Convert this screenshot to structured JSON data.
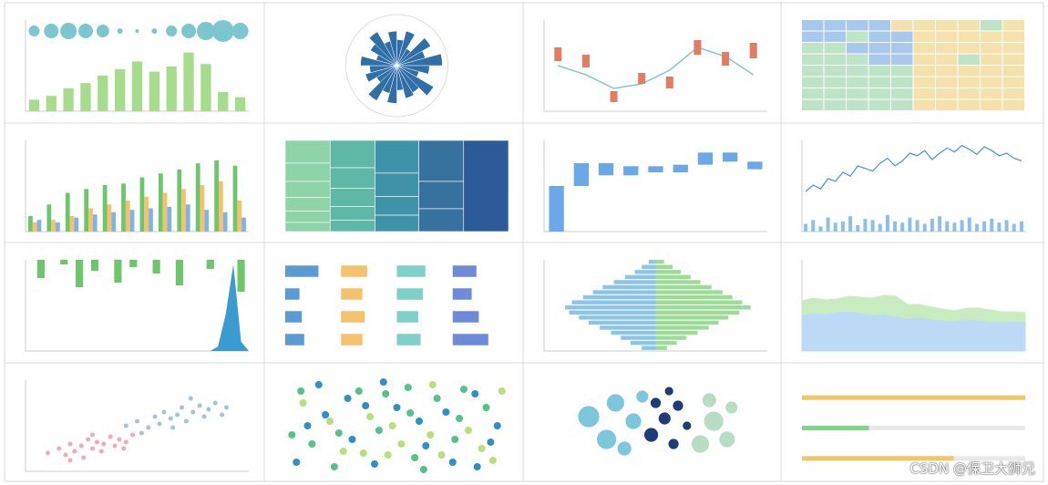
{
  "watermark": "CSDN @保卫大狮兄",
  "panels": [
    {
      "type": "bar-bubble",
      "ylim": [
        0,
        100
      ],
      "color": "#a6dc8c",
      "bubble_color": "#7cc7cf",
      "values": [
        18,
        24,
        36,
        44,
        56,
        66,
        78,
        62,
        70,
        92,
        74,
        30,
        22
      ],
      "sizes": [
        6,
        8,
        9,
        8,
        7,
        3,
        2,
        3,
        6,
        8,
        10,
        12,
        9
      ]
    },
    {
      "type": "rose",
      "rmax": 70,
      "color": "#2f6ea6",
      "values": [
        40,
        55,
        30,
        60,
        45,
        70,
        50,
        35,
        65,
        48,
        52,
        38,
        58,
        44,
        62,
        36,
        50,
        42,
        56,
        33,
        47,
        60,
        39,
        53
      ]
    },
    {
      "type": "range",
      "ylim": [
        0,
        100
      ],
      "color": "#e27c63",
      "line_color": "#7fc8c8",
      "line": [
        50,
        40,
        25,
        30,
        45,
        70,
        60,
        40
      ],
      "ranges": [
        [
          55,
          70
        ],
        [
          48,
          62
        ],
        [
          10,
          22
        ],
        [
          30,
          42
        ],
        [
          25,
          38
        ],
        [
          62,
          78
        ],
        [
          50,
          65
        ],
        [
          58,
          75
        ]
      ]
    },
    {
      "type": "heatmap",
      "colors": [
        "#a9c9ec",
        "#bfe3c6",
        "#f4e1ab"
      ],
      "rows": [
        [
          2,
          3,
          1,
          2,
          8,
          7,
          9,
          8,
          6,
          7
        ],
        [
          3,
          2,
          5,
          1,
          2,
          8,
          7,
          9,
          8,
          7
        ],
        [
          5,
          4,
          2,
          3,
          1,
          9,
          8,
          7,
          8,
          9
        ],
        [
          4,
          5,
          6,
          2,
          3,
          7,
          8,
          5,
          7,
          8
        ],
        [
          5,
          6,
          4,
          5,
          6,
          8,
          9,
          8,
          7,
          8
        ],
        [
          4,
          5,
          5,
          6,
          5,
          7,
          8,
          9,
          8,
          7
        ],
        [
          5,
          4,
          6,
          5,
          4,
          8,
          7,
          8,
          9,
          8
        ],
        [
          4,
          5,
          5,
          4,
          5,
          7,
          8,
          7,
          8,
          9
        ]
      ]
    },
    {
      "type": "grouped-bar",
      "ylim": [
        0,
        100
      ],
      "series": [
        {
          "color": "#6cc66a",
          "values": [
            20,
            35,
            50,
            55,
            60,
            62,
            70,
            75,
            80,
            88,
            92,
            85
          ]
        },
        {
          "color": "#f5c16c",
          "values": [
            12,
            15,
            20,
            30,
            35,
            40,
            45,
            50,
            55,
            60,
            65,
            40
          ]
        },
        {
          "color": "#7fb3e6",
          "values": [
            15,
            12,
            18,
            22,
            25,
            28,
            30,
            32,
            35,
            28,
            25,
            18
          ]
        }
      ]
    },
    {
      "type": "treemap",
      "colors": [
        "#8fd3a8",
        "#5fb8a6",
        "#3f93a8",
        "#37729f",
        "#2d5a98"
      ],
      "groups": [
        [
          10,
          8,
          7,
          6,
          5,
          4
        ],
        [
          12,
          9,
          8,
          6,
          5
        ],
        [
          14,
          10,
          8,
          7
        ],
        [
          18,
          12,
          10
        ],
        [
          40
        ]
      ]
    },
    {
      "type": "waterfall",
      "ylim": [
        0,
        60
      ],
      "color": "#6aa8e8",
      "values": [
        30,
        15,
        -8,
        6,
        -4,
        5,
        8,
        -6,
        -5
      ]
    },
    {
      "type": "candle",
      "ylim": [
        30,
        80
      ],
      "vlim": [
        0,
        100
      ],
      "color": "#4a90d9",
      "vol_color": "#8cc0ea",
      "values": [
        40,
        45,
        42,
        50,
        48,
        55,
        52,
        60,
        58,
        56,
        62,
        66,
        60,
        64,
        70,
        68,
        72,
        65,
        70,
        74,
        71,
        76,
        73,
        69,
        75,
        72,
        68,
        70,
        66,
        64
      ],
      "volume": [
        30,
        45,
        20,
        55,
        35,
        40,
        60,
        25,
        50,
        45,
        30,
        65,
        40,
        35,
        55,
        45,
        30,
        50,
        60,
        40,
        35,
        45,
        55,
        30,
        40,
        50,
        35,
        45,
        30,
        40
      ]
    },
    {
      "type": "spikes",
      "ylim": [
        0,
        100
      ],
      "color": "#6cc66a",
      "area_color": "#3a9bd0",
      "values": [
        0,
        0,
        20,
        0,
        0,
        5,
        0,
        30,
        0,
        12,
        0,
        0,
        25,
        0,
        8,
        0,
        0,
        15,
        0,
        0,
        28,
        0,
        0,
        0,
        10,
        0,
        0,
        0,
        35,
        0
      ],
      "area": [
        0,
        0,
        0,
        0,
        0,
        0,
        0,
        0,
        0,
        0,
        0,
        0,
        0,
        0,
        0,
        0,
        0,
        0,
        0,
        0,
        0,
        0,
        0,
        0,
        0,
        5,
        40,
        95,
        10,
        0
      ]
    },
    {
      "type": "bar-grid",
      "xlim": [
        0,
        100
      ],
      "colors": [
        "#5b9bd5",
        "#f5c16c",
        "#7fd1c7",
        "#6e8ad8"
      ],
      "rows": [
        [
          70,
          55,
          60,
          50
        ],
        [
          30,
          45,
          55,
          40
        ],
        [
          35,
          50,
          45,
          55
        ],
        [
          40,
          45,
          50,
          75
        ]
      ]
    },
    {
      "type": "pyramid",
      "xlim": [
        0,
        80
      ],
      "colors": [
        "#8cc4ea",
        "#9ddc96"
      ],
      "left": [
        5,
        10,
        15,
        22,
        30,
        38,
        45,
        52,
        60,
        65,
        62,
        55,
        48,
        40,
        32,
        25,
        18,
        10
      ],
      "right": [
        6,
        12,
        18,
        25,
        32,
        40,
        48,
        55,
        62,
        68,
        60,
        52,
        45,
        38,
        30,
        22,
        15,
        8
      ]
    },
    {
      "type": "stacked-area",
      "ylim": [
        0,
        100
      ],
      "series": [
        {
          "color": "#bcdaf5",
          "values": [
            40,
            42,
            41,
            43,
            44,
            42,
            40,
            41,
            38,
            36,
            37,
            35,
            34,
            33,
            35,
            34,
            33,
            32,
            33,
            32
          ]
        },
        {
          "color": "#c8ecc0",
          "values": [
            15,
            16,
            15,
            14,
            16,
            17,
            18,
            20,
            22,
            15,
            14,
            13,
            12,
            11,
            12,
            13,
            12,
            11,
            10,
            10
          ]
        }
      ]
    },
    {
      "type": "scatter",
      "xlim": [
        0,
        100
      ],
      "ylim": [
        0,
        100
      ],
      "series": [
        {
          "color": "#e8859c",
          "points": [
            [
              10,
              20
            ],
            [
              15,
              25
            ],
            [
              18,
              18
            ],
            [
              20,
              30
            ],
            [
              22,
              22
            ],
            [
              25,
              28
            ],
            [
              28,
              35
            ],
            [
              30,
              25
            ],
            [
              32,
              32
            ],
            [
              35,
              30
            ],
            [
              38,
              38
            ],
            [
              40,
              28
            ],
            [
              42,
              35
            ],
            [
              45,
              32
            ],
            [
              48,
              40
            ],
            [
              26,
              15
            ],
            [
              34,
              22
            ],
            [
              30,
              40
            ],
            [
              20,
              12
            ],
            [
              44,
              25
            ]
          ]
        },
        {
          "color": "#7ea6d8",
          "points": [
            [
              45,
              50
            ],
            [
              50,
              55
            ],
            [
              55,
              48
            ],
            [
              58,
              60
            ],
            [
              60,
              52
            ],
            [
              62,
              65
            ],
            [
              65,
              58
            ],
            [
              68,
              62
            ],
            [
              70,
              70
            ],
            [
              72,
              55
            ],
            [
              75,
              65
            ],
            [
              78,
              72
            ],
            [
              80,
              60
            ],
            [
              82,
              68
            ],
            [
              85,
              75
            ],
            [
              88,
              62
            ],
            [
              52,
              42
            ],
            [
              66,
              48
            ],
            [
              74,
              80
            ],
            [
              90,
              70
            ]
          ]
        }
      ]
    },
    {
      "type": "dots",
      "colors": [
        "#2f8fc9",
        "#53c28b",
        "#b7e07a"
      ],
      "points": [
        [
          5,
          10,
          0
        ],
        [
          12,
          30,
          1
        ],
        [
          20,
          55,
          2
        ],
        [
          28,
          80,
          0
        ],
        [
          35,
          20,
          2
        ],
        [
          42,
          45,
          1
        ],
        [
          50,
          70,
          0
        ],
        [
          58,
          15,
          1
        ],
        [
          65,
          40,
          2
        ],
        [
          72,
          65,
          0
        ],
        [
          80,
          90,
          1
        ],
        [
          88,
          25,
          2
        ],
        [
          95,
          50,
          0
        ],
        [
          8,
          75,
          2
        ],
        [
          15,
          95,
          0
        ],
        [
          22,
          5,
          1
        ],
        [
          30,
          35,
          0
        ],
        [
          38,
          60,
          2
        ],
        [
          45,
          85,
          1
        ],
        [
          52,
          30,
          2
        ],
        [
          60,
          55,
          0
        ],
        [
          68,
          80,
          1
        ],
        [
          75,
          10,
          0
        ],
        [
          82,
          45,
          2
        ],
        [
          90,
          70,
          1
        ],
        [
          3,
          40,
          1
        ],
        [
          18,
          62,
          0
        ],
        [
          26,
          22,
          2
        ],
        [
          33,
          88,
          1
        ],
        [
          40,
          8,
          0
        ],
        [
          48,
          50,
          2
        ],
        [
          55,
          92,
          1
        ],
        [
          63,
          28,
          0
        ],
        [
          70,
          18,
          2
        ],
        [
          78,
          58,
          1
        ],
        [
          85,
          85,
          0
        ],
        [
          93,
          12,
          2
        ],
        [
          10,
          50,
          0
        ],
        [
          24,
          42,
          1
        ],
        [
          36,
          72,
          0
        ],
        [
          46,
          18,
          2
        ],
        [
          56,
          64,
          1
        ],
        [
          66,
          95,
          2
        ],
        [
          76,
          35,
          1
        ],
        [
          86,
          5,
          0
        ],
        [
          97,
          88,
          2
        ],
        [
          7,
          88,
          1
        ],
        [
          44,
          98,
          0
        ],
        [
          62,
          2,
          1
        ],
        [
          92,
          32,
          0
        ]
      ]
    },
    {
      "type": "bubbles",
      "colors": [
        "#7cc7dc",
        "#1f3b7a",
        "#b8dcc4"
      ],
      "bubbles": [
        [
          20,
          60,
          12,
          0
        ],
        [
          28,
          35,
          11,
          0
        ],
        [
          32,
          75,
          10,
          0
        ],
        [
          40,
          55,
          9,
          0
        ],
        [
          36,
          25,
          8,
          0
        ],
        [
          44,
          82,
          7,
          0
        ],
        [
          48,
          40,
          8,
          1
        ],
        [
          54,
          58,
          7,
          1
        ],
        [
          50,
          75,
          6,
          1
        ],
        [
          58,
          30,
          6,
          1
        ],
        [
          60,
          72,
          6,
          1
        ],
        [
          56,
          88,
          5,
          1
        ],
        [
          64,
          50,
          5,
          1
        ],
        [
          70,
          30,
          10,
          2
        ],
        [
          76,
          55,
          11,
          2
        ],
        [
          82,
          35,
          9,
          2
        ],
        [
          74,
          78,
          8,
          2
        ],
        [
          84,
          70,
          7,
          2
        ]
      ]
    },
    {
      "type": "progress",
      "xlim": [
        0,
        100
      ],
      "track": "#e8e8e8",
      "colors": [
        "#f0c766",
        "#7fd48a",
        "#f0c766"
      ],
      "values": [
        100,
        30,
        68
      ]
    }
  ]
}
